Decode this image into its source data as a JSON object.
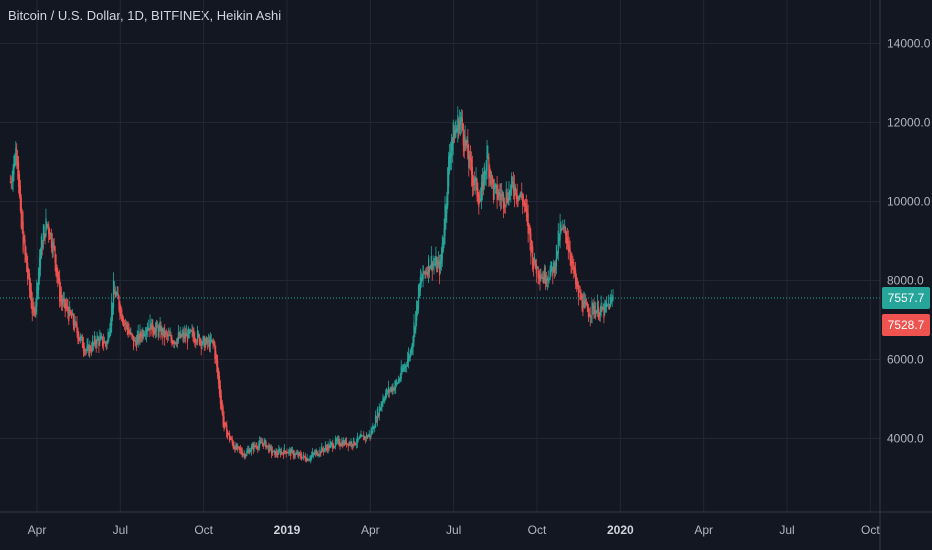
{
  "chart_data": {
    "type": "candlestick",
    "title": "Bitcoin / U.S. Dollar, 1D, BITFINEX, Heikin Ashi",
    "ylim": [
      2400,
      15000
    ],
    "y_ticks": [
      "4000.0",
      "6000.0",
      "8000.0",
      "10000.0",
      "12000.0",
      "14000.0"
    ],
    "x_ticks": [
      {
        "label": "Apr",
        "bold": false
      },
      {
        "label": "Jul",
        "bold": false
      },
      {
        "label": "Oct",
        "bold": false
      },
      {
        "label": "2019",
        "bold": true
      },
      {
        "label": "Apr",
        "bold": false
      },
      {
        "label": "Jul",
        "bold": false
      },
      {
        "label": "Oct",
        "bold": false
      },
      {
        "label": "2020",
        "bold": true
      },
      {
        "label": "Apr",
        "bold": false
      },
      {
        "label": "Jul",
        "bold": false
      },
      {
        "label": "Oct",
        "bold": false
      }
    ],
    "current_price": {
      "value": 7557.7,
      "label": "7557.7",
      "color": "#26a69a"
    },
    "second_price": {
      "value": 7528.7,
      "label": "7528.7",
      "color": "#ef5350"
    },
    "path": [
      [
        2018.17,
        10500
      ],
      [
        2018.19,
        11500
      ],
      [
        2018.2,
        9500
      ],
      [
        2018.22,
        8200
      ],
      [
        2018.24,
        7000
      ],
      [
        2018.26,
        8800
      ],
      [
        2018.28,
        9500
      ],
      [
        2018.3,
        8800
      ],
      [
        2018.32,
        7500
      ],
      [
        2018.35,
        7100
      ],
      [
        2018.38,
        6500
      ],
      [
        2018.4,
        6200
      ],
      [
        2018.43,
        6500
      ],
      [
        2018.46,
        6400
      ],
      [
        2018.48,
        7800
      ],
      [
        2018.51,
        7000
      ],
      [
        2018.54,
        6400
      ],
      [
        2018.56,
        6600
      ],
      [
        2018.58,
        6900
      ],
      [
        2018.62,
        6700
      ],
      [
        2018.65,
        6500
      ],
      [
        2018.7,
        6600
      ],
      [
        2018.73,
        6600
      ],
      [
        2018.75,
        6400
      ],
      [
        2018.78,
        6400
      ],
      [
        2018.81,
        4300
      ],
      [
        2018.84,
        3800
      ],
      [
        2018.87,
        3600
      ],
      [
        2018.9,
        3800
      ],
      [
        2018.93,
        3900
      ],
      [
        2018.96,
        3600
      ],
      [
        2019.0,
        3700
      ],
      [
        2019.02,
        3600
      ],
      [
        2019.06,
        3500
      ],
      [
        2019.1,
        3700
      ],
      [
        2019.15,
        3900
      ],
      [
        2019.2,
        3900
      ],
      [
        2019.25,
        4100
      ],
      [
        2019.29,
        5100
      ],
      [
        2019.33,
        5400
      ],
      [
        2019.37,
        6200
      ],
      [
        2019.4,
        8000
      ],
      [
        2019.43,
        8500
      ],
      [
        2019.46,
        8300
      ],
      [
        2019.49,
        11500
      ],
      [
        2019.52,
        12100
      ],
      [
        2019.55,
        10800
      ],
      [
        2019.58,
        10000
      ],
      [
        2019.6,
        11200
      ],
      [
        2019.62,
        10200
      ],
      [
        2019.65,
        10100
      ],
      [
        2019.68,
        10400
      ],
      [
        2019.71,
        10000
      ],
      [
        2019.74,
        8400
      ],
      [
        2019.77,
        8100
      ],
      [
        2019.8,
        8300
      ],
      [
        2019.82,
        9300
      ],
      [
        2019.84,
        9100
      ],
      [
        2019.87,
        7700
      ],
      [
        2019.9,
        7200
      ],
      [
        2019.92,
        7300
      ],
      [
        2019.95,
        7200
      ],
      [
        2019.98,
        7557.7
      ]
    ]
  }
}
